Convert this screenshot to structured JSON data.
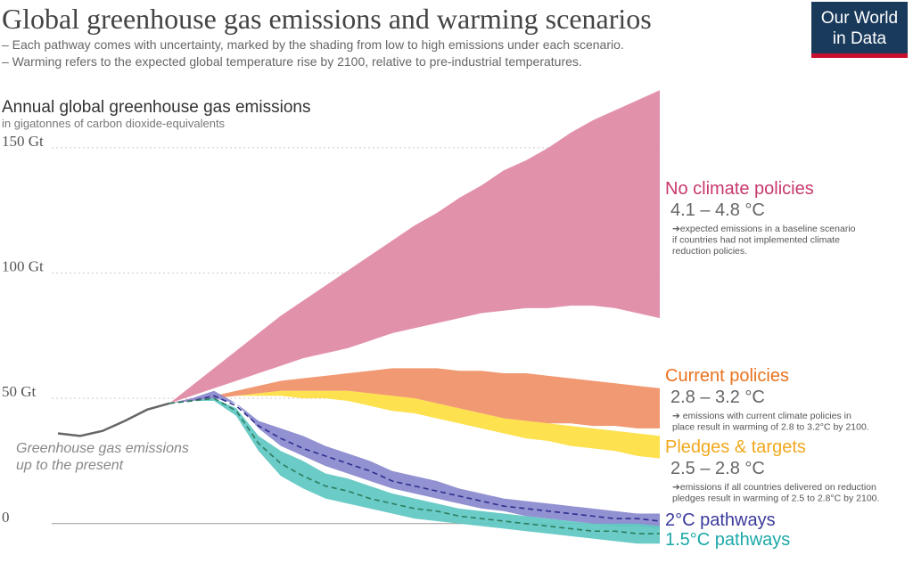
{
  "chart_data": {
    "type": "area-range",
    "title": "Global greenhouse gas emissions and warming scenarios",
    "subtitle": [
      "– Each pathway comes with uncertainty, marked by the shading from low to high emissions under each scenario.",
      "– Warming refers to the expected global temperature rise by 2100, relative to pre-industrial temperatures."
    ],
    "logo": [
      "Our World",
      "in Data"
    ],
    "y_title": "Annual global greenhouse gas emissions",
    "y_subtitle": "in gigatonnes of carbon dioxide-equivalents",
    "ylim": [
      -15,
      180
    ],
    "yticks": [
      0,
      {
        "value": 50,
        "label": "50 Gt"
      },
      {
        "value": 100,
        "label": "100 Gt"
      },
      {
        "value": 150,
        "label": "150 Gt"
      }
    ],
    "grid": true,
    "categories": [
      null,
      null,
      null,
      null,
      null,
      null,
      null,
      null,
      null,
      null,
      null,
      null,
      null,
      null,
      null,
      null,
      null,
      null,
      null,
      null,
      null,
      null,
      null,
      null,
      null,
      null,
      null,
      null
    ],
    "history": {
      "label": [
        "Greenhouse gas emissions",
        "up to the present"
      ],
      "color": "#666666",
      "values": [
        36,
        35,
        37,
        41,
        45.5,
        48,
        null,
        null,
        null,
        null,
        null,
        null,
        null,
        null,
        null,
        null,
        null,
        null,
        null,
        null,
        null,
        null,
        null,
        null,
        null,
        null,
        null,
        null
      ]
    },
    "series": [
      {
        "name": "No climate policies",
        "warming": "4.1 – 4.8 °C",
        "note": [
          "➔expected emissions in a baseline scenario",
          "if countries had not implemented climate",
          "reduction policies."
        ],
        "color": "#e08ba5",
        "label_color": "#c8386d",
        "high": [
          null,
          null,
          null,
          null,
          null,
          48,
          55,
          62,
          69,
          76,
          83,
          89,
          95,
          101,
          107,
          113,
          119,
          124,
          130,
          135,
          141,
          145,
          150,
          156,
          161,
          165,
          169,
          173
        ],
        "low": [
          null,
          null,
          null,
          null,
          null,
          48,
          51,
          54,
          57,
          60,
          63,
          66,
          68,
          70,
          73,
          76,
          78,
          80,
          82,
          84,
          85,
          86,
          86,
          87,
          87,
          86,
          84,
          82
        ]
      },
      {
        "name": "Current policies",
        "warming": "2.8 – 3.2 °C",
        "note": [
          "➔ emissions with current climate policies in",
          "place result in warming of 2.8 to 3.2°C by 2100."
        ],
        "color": "#f0946a",
        "label_color": "#e8731f",
        "high": [
          null,
          null,
          null,
          null,
          null,
          48,
          50,
          51,
          53,
          55,
          57,
          58,
          59,
          60,
          61,
          62,
          62,
          62,
          61,
          61,
          60,
          60,
          59,
          58,
          57,
          56,
          55,
          54
        ],
        "low": [
          null,
          null,
          null,
          null,
          null,
          48,
          49,
          50,
          51,
          52,
          53,
          53,
          53,
          53,
          52,
          51,
          50,
          48,
          46,
          44,
          42,
          41,
          40,
          40,
          39,
          39,
          38,
          38
        ]
      },
      {
        "name": "Pledges & targets",
        "warming": "2.5 – 2.8 °C",
        "note": [
          "➔emissions if all countries delivered on reduction",
          "pledges result in warming of 2.5 to 2.8°C by 2100."
        ],
        "color": "#fddf45",
        "label_color": "#f1a81d",
        "high": [
          null,
          null,
          null,
          null,
          null,
          48,
          49,
          50,
          51,
          52,
          53,
          53,
          53,
          53,
          52,
          51,
          50,
          48,
          46,
          44,
          42,
          41,
          40,
          39,
          38,
          37,
          36,
          35
        ],
        "low": [
          null,
          null,
          null,
          null,
          null,
          48,
          49,
          50,
          51,
          51,
          51,
          50,
          50,
          49,
          47,
          45,
          44,
          42,
          40,
          38,
          36,
          34,
          33,
          31,
          30,
          29,
          27,
          26
        ]
      },
      {
        "name": "2°C pathways",
        "color": "#8c8bcf",
        "label_color": "#3b3a9c",
        "median_color": "#2e2e8f",
        "high": [
          null,
          null,
          null,
          null,
          null,
          48,
          50,
          53,
          48,
          41,
          38,
          35,
          31,
          28,
          25,
          21,
          19,
          17,
          14,
          12,
          10,
          9,
          8,
          7,
          6,
          5,
          4,
          4
        ],
        "low": [
          null,
          null,
          null,
          null,
          null,
          48,
          49,
          50,
          48,
          38,
          31,
          27,
          23,
          20,
          17,
          14,
          12,
          10,
          8,
          6,
          5,
          3,
          2,
          1,
          0,
          -1,
          -1,
          -2
        ],
        "median": [
          null,
          null,
          null,
          null,
          null,
          48,
          49,
          51,
          47,
          39,
          34,
          30,
          27,
          24,
          21,
          17,
          15,
          13,
          11,
          9,
          7,
          6,
          5,
          4,
          3,
          2,
          2,
          1
        ]
      },
      {
        "name": "1.5°C pathways",
        "color": "#62c8c4",
        "label_color": "#1ca8a8",
        "median_color": "#2e7d5e",
        "high": [
          null,
          null,
          null,
          null,
          null,
          48,
          49,
          50,
          46,
          35,
          29,
          25,
          20,
          18,
          15,
          12,
          10,
          8,
          6,
          5,
          4,
          3,
          2,
          1,
          0,
          0,
          0,
          -1
        ],
        "low": [
          null,
          null,
          null,
          null,
          null,
          48,
          49,
          49,
          43,
          29,
          19,
          14,
          10,
          8,
          6,
          4,
          2,
          1,
          0,
          -1,
          -2,
          -3,
          -4,
          -5,
          -6,
          -7,
          -8,
          -8
        ],
        "median": [
          null,
          null,
          null,
          null,
          null,
          48,
          49,
          50,
          45,
          32,
          24,
          19,
          15,
          13,
          10,
          8,
          6,
          5,
          3,
          2,
          1,
          0,
          -1,
          -2,
          -3,
          -3,
          -4,
          -4
        ]
      }
    ]
  }
}
